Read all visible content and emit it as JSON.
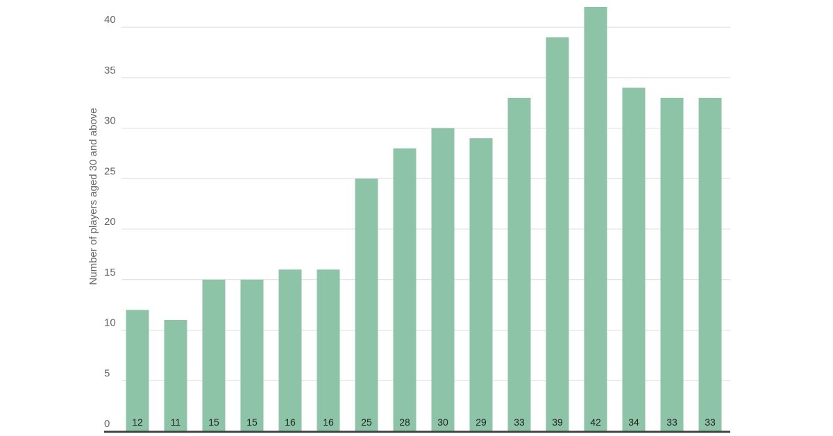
{
  "chart_data": {
    "type": "bar",
    "y_axis_label": "Number of players aged 30 and above",
    "categories": [
      null,
      null,
      null,
      null,
      null,
      null,
      null,
      null,
      null,
      null,
      null,
      null,
      null,
      null,
      null,
      null
    ],
    "values": [
      12,
      11,
      15,
      15,
      16,
      16,
      25,
      28,
      30,
      29,
      33,
      39,
      42,
      34,
      33,
      33
    ],
    "color": "#8dc3a7",
    "ylim": [
      0,
      42
    ],
    "yticks": [
      0,
      5,
      10,
      15,
      20,
      25,
      30,
      35,
      40
    ],
    "grid": true
  }
}
